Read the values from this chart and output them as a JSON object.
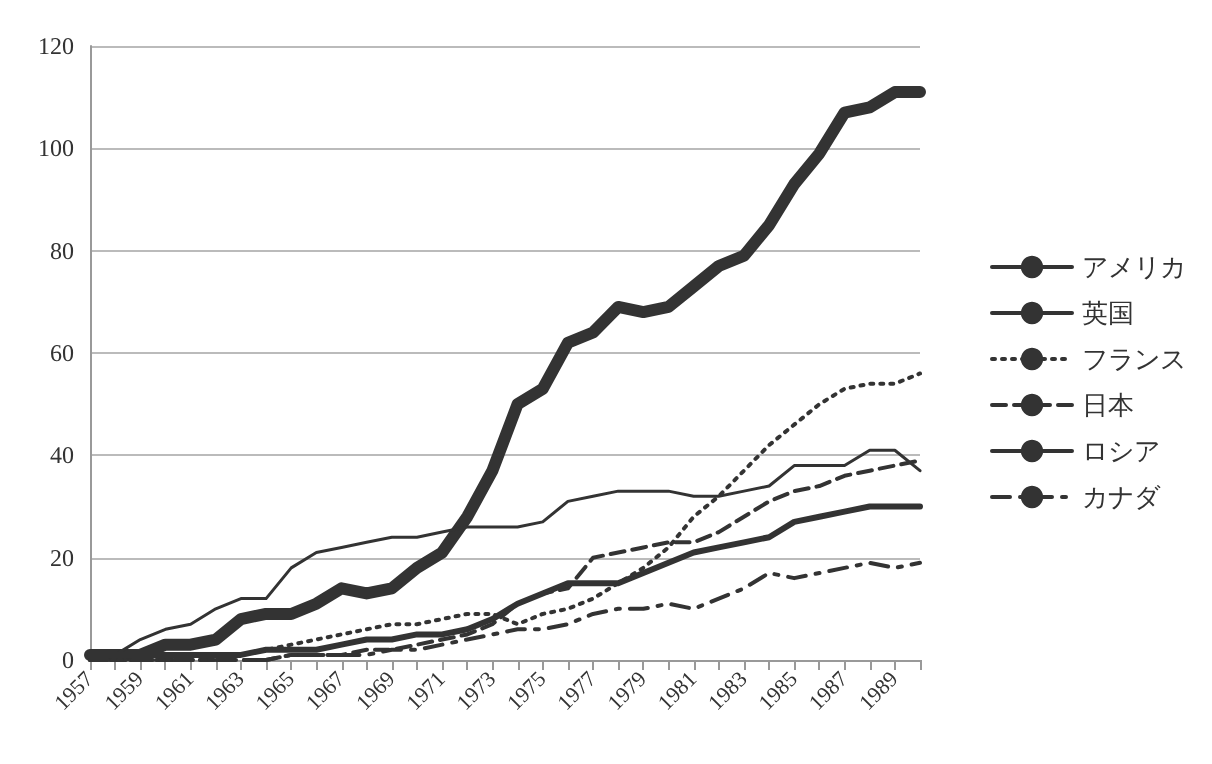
{
  "chart_data": {
    "type": "line",
    "categories": [
      "1957",
      null,
      "1959",
      null,
      "1961",
      null,
      "1963",
      null,
      "1965",
      null,
      "1967",
      null,
      "1969",
      null,
      "1971",
      null,
      "1973",
      null,
      "1975",
      null,
      "1977",
      null,
      "1979",
      null,
      "1981",
      null,
      "1983",
      null,
      "1985",
      null,
      "1987",
      null,
      "1989",
      null
    ],
    "series": [
      {
        "name": "アメリカ",
        "color": "#333333",
        "line_style": "solid",
        "values": [
          1,
          1,
          1,
          3,
          3,
          4,
          8,
          9,
          9,
          11,
          14,
          13,
          14,
          18,
          21,
          28,
          37,
          50,
          53,
          62,
          64,
          69,
          68,
          69,
          73,
          77,
          79,
          85,
          93,
          99,
          107,
          108,
          111,
          111
        ]
      },
      {
        "name": "英国",
        "color": "#333333",
        "line_style": "solid",
        "values": [
          1,
          1,
          4,
          6,
          7,
          10,
          12,
          12,
          18,
          21,
          22,
          23,
          24,
          24,
          25,
          26,
          26,
          26,
          27,
          31,
          32,
          33,
          33,
          33,
          32,
          32,
          33,
          34,
          38,
          38,
          38,
          41,
          41,
          37
        ]
      },
      {
        "name": "フランス",
        "color": "#333333",
        "line_style": "dotted",
        "values": [
          0,
          0,
          0,
          0,
          0,
          0,
          1,
          2,
          3,
          4,
          5,
          6,
          7,
          7,
          8,
          9,
          9,
          7,
          9,
          10,
          12,
          15,
          18,
          22,
          28,
          32,
          37,
          42,
          46,
          50,
          53,
          54,
          54,
          56
        ]
      },
      {
        "name": "日本",
        "color": "#333333",
        "line_style": "dashed",
        "values": [
          0,
          0,
          0,
          0,
          0,
          0,
          0,
          0,
          1,
          1,
          1,
          2,
          2,
          3,
          4,
          5,
          7,
          11,
          13,
          14,
          20,
          21,
          22,
          23,
          23,
          25,
          28,
          31,
          33,
          34,
          36,
          37,
          38,
          39
        ]
      },
      {
        "name": "ロシア",
        "color": "#333333",
        "line_style": "solid",
        "values": [
          1,
          1,
          1,
          1,
          1,
          1,
          1,
          2,
          2,
          2,
          3,
          4,
          4,
          5,
          5,
          6,
          8,
          11,
          13,
          15,
          15,
          15,
          17,
          19,
          21,
          22,
          23,
          24,
          27,
          28,
          29,
          30,
          30,
          30
        ]
      },
      {
        "name": "カナダ",
        "color": "#333333",
        "line_style": "dashdot",
        "values": [
          0,
          0,
          0,
          0,
          0,
          0,
          0,
          0,
          1,
          1,
          1,
          1,
          2,
          2,
          3,
          4,
          5,
          6,
          6,
          7,
          9,
          10,
          10,
          11,
          10,
          12,
          14,
          17,
          16,
          17,
          18,
          19,
          18,
          19
        ]
      }
    ],
    "ylim": [
      0,
      120
    ],
    "yticks": [
      0,
      20,
      40,
      60,
      80,
      100,
      120
    ],
    "grid": "y",
    "legend": "right",
    "marker": "none"
  }
}
